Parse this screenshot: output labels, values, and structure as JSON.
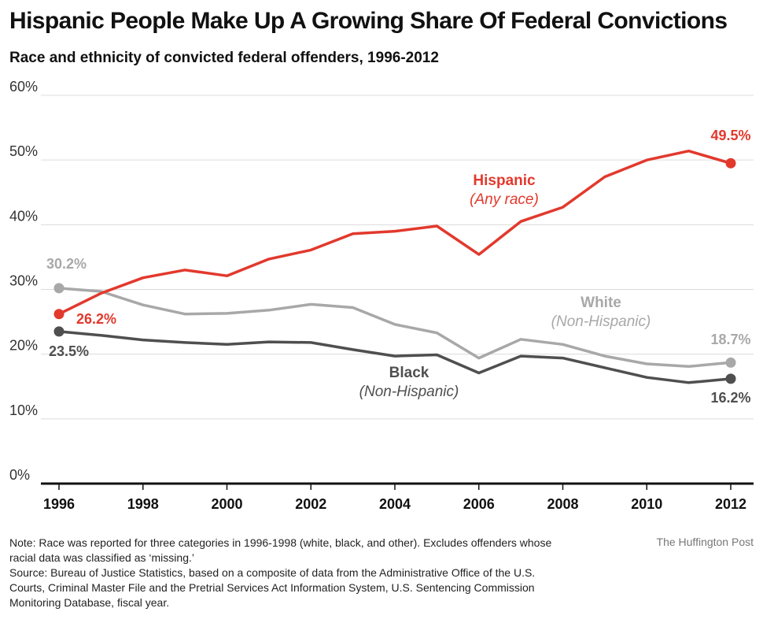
{
  "title": "Hispanic People Make Up A Growing Share Of Federal Convictions",
  "subtitle": "Race and ethnicity of convicted federal offenders, 1996-2012",
  "note_lines": [
    "Note: Race was reported for three categories in 1996-1998 (white, black, and other). Excludes offenders whose",
    "racial data was classified as ‘missing.’",
    "Source: Bureau of Justice Statistics, based on a composite of data from the Administrative Office of the U.S.",
    "Courts, Criminal Master File and the Pretrial Services Act Information System, U.S. Sentencing Commission",
    "Monitoring Database, fiscal year."
  ],
  "credit": "The Huffington Post",
  "chart_data": {
    "type": "line",
    "x": [
      1996,
      1997,
      1998,
      1999,
      2000,
      2001,
      2002,
      2003,
      2004,
      2005,
      2006,
      2007,
      2008,
      2009,
      2010,
      2011,
      2012
    ],
    "x_tick_values": [
      1996,
      1998,
      2000,
      2002,
      2004,
      2006,
      2008,
      2010,
      2012
    ],
    "x_tick_labels": [
      "1996",
      "1998",
      "2000",
      "2002",
      "2004",
      "2006",
      "2008",
      "2010",
      "2012"
    ],
    "y_tick_values": [
      0,
      10,
      20,
      30,
      40,
      50,
      60
    ],
    "y_tick_labels": [
      "0%",
      "10%",
      "20%",
      "30%",
      "40%",
      "50%",
      "60%"
    ],
    "ylim": [
      0,
      60
    ],
    "grid": true,
    "series": [
      {
        "key": "white",
        "name": "White",
        "sub": "(Non-Hispanic)",
        "color": "#a8a8a8",
        "values": [
          30.2,
          29.7,
          27.6,
          26.2,
          26.3,
          26.8,
          27.7,
          27.2,
          24.6,
          23.3,
          19.4,
          22.3,
          21.5,
          19.7,
          18.5,
          18.1,
          18.7
        ],
        "start_label": "30.2%",
        "end_label": "18.7%"
      },
      {
        "key": "black",
        "name": "Black",
        "sub": "(Non-Hispanic)",
        "color": "#4f4f4f",
        "values": [
          23.5,
          22.9,
          22.2,
          21.8,
          21.5,
          21.9,
          21.8,
          20.7,
          19.7,
          19.9,
          17.1,
          19.7,
          19.4,
          17.9,
          16.4,
          15.6,
          16.2
        ],
        "start_label": "23.5%",
        "end_label": "16.2%"
      },
      {
        "key": "hispanic",
        "name": "Hispanic",
        "sub": "(Any race)",
        "color": "#e2392d",
        "values": [
          26.2,
          29.4,
          31.8,
          33.0,
          32.1,
          34.7,
          36.1,
          38.6,
          39.0,
          39.8,
          35.4,
          40.5,
          42.7,
          47.4,
          50.0,
          51.4,
          49.5
        ],
        "start_label": "26.2%",
        "end_label": "49.5%"
      }
    ]
  }
}
